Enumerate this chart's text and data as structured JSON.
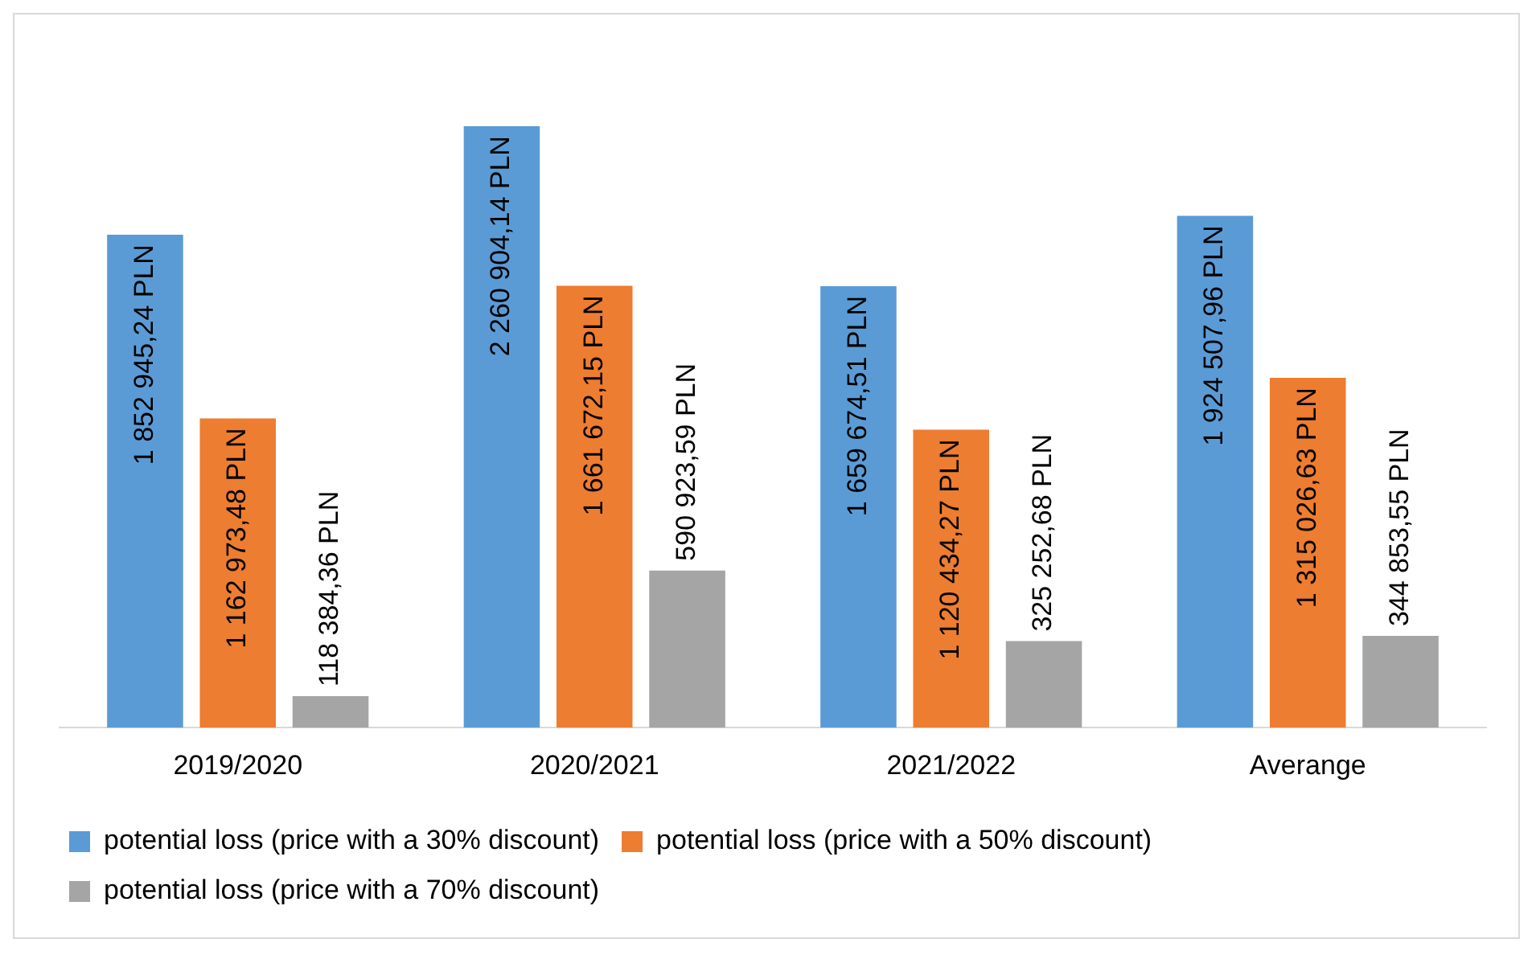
{
  "chart_data": {
    "type": "bar",
    "categories": [
      "2019/2020",
      "2020/2021",
      "2021/2022",
      "Averange"
    ],
    "series": [
      {
        "name": "potential loss (price with a 30% discount)",
        "color": "#5b9bd5",
        "values": [
          1852945.24,
          2260904.14,
          1659674.51,
          1924507.96
        ],
        "value_labels": [
          "1 852 945,24 PLN",
          "2 260 904,14 PLN",
          "1 659 674,51 PLN",
          "1 924 507,96 PLN"
        ]
      },
      {
        "name": "potential loss (price with a 50% discount)",
        "color": "#ed7d31",
        "values": [
          1162973.48,
          1661672.15,
          1120434.27,
          1315026.63
        ],
        "value_labels": [
          "1 162 973,48 PLN",
          "1 661 672,15 PLN",
          "1 120 434,27 PLN",
          "1 315 026,63 PLN"
        ]
      },
      {
        "name": "potential loss (price with a 70% discount)",
        "color": "#a5a5a5",
        "values": [
          118384.36,
          590923.59,
          325252.68,
          344853.55
        ],
        "value_labels": [
          "118 384,36 PLN",
          "590 923,59 PLN",
          "325 252,68 PLN",
          "344 853,55 PLN"
        ]
      }
    ],
    "tick_labels": "x",
    "grid": false,
    "legend": "bottom"
  }
}
